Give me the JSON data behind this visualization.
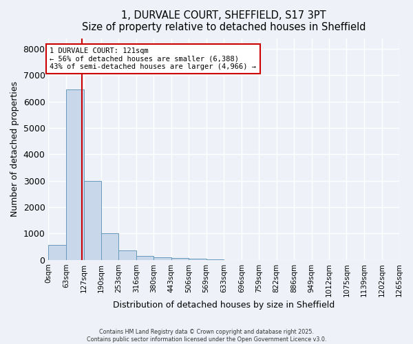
{
  "title": "1, DURVALE COURT, SHEFFIELD, S17 3PT",
  "subtitle": "Size of property relative to detached houses in Sheffield",
  "xlabel": "Distribution of detached houses by size in Sheffield",
  "ylabel": "Number of detached properties",
  "bar_color": "#c8d8ea",
  "bar_edge_color": "#6699bb",
  "bins": [
    0,
    63,
    127,
    190,
    253,
    316,
    380,
    443,
    506,
    569,
    633,
    696,
    759,
    822,
    886,
    949,
    1012,
    1075,
    1139,
    1202,
    1265
  ],
  "bar_heights": [
    560,
    6450,
    2980,
    1000,
    360,
    155,
    100,
    75,
    50,
    15,
    8,
    5,
    3,
    2,
    1,
    1,
    0,
    0,
    0,
    0
  ],
  "tick_labels": [
    "0sqm",
    "63sqm",
    "127sqm",
    "190sqm",
    "253sqm",
    "316sqm",
    "380sqm",
    "443sqm",
    "506sqm",
    "569sqm",
    "633sqm",
    "696sqm",
    "759sqm",
    "822sqm",
    "886sqm",
    "949sqm",
    "1012sqm",
    "1075sqm",
    "1139sqm",
    "1202sqm",
    "1265sqm"
  ],
  "ylim": [
    0,
    8400
  ],
  "yticks": [
    0,
    1000,
    2000,
    3000,
    4000,
    5000,
    6000,
    7000,
    8000
  ],
  "property_size": 121,
  "red_line_color": "#cc0000",
  "annotation_text": "1 DURVALE COURT: 121sqm\n← 56% of detached houses are smaller (6,388)\n43% of semi-detached houses are larger (4,966) →",
  "annotation_box_color": "#ffffff",
  "annotation_border_color": "#cc0000",
  "footer_line1": "Contains HM Land Registry data © Crown copyright and database right 2025.",
  "footer_line2": "Contains public sector information licensed under the Open Government Licence v3.0.",
  "bg_color": "#eef2f8",
  "grid_color": "#ffffff"
}
